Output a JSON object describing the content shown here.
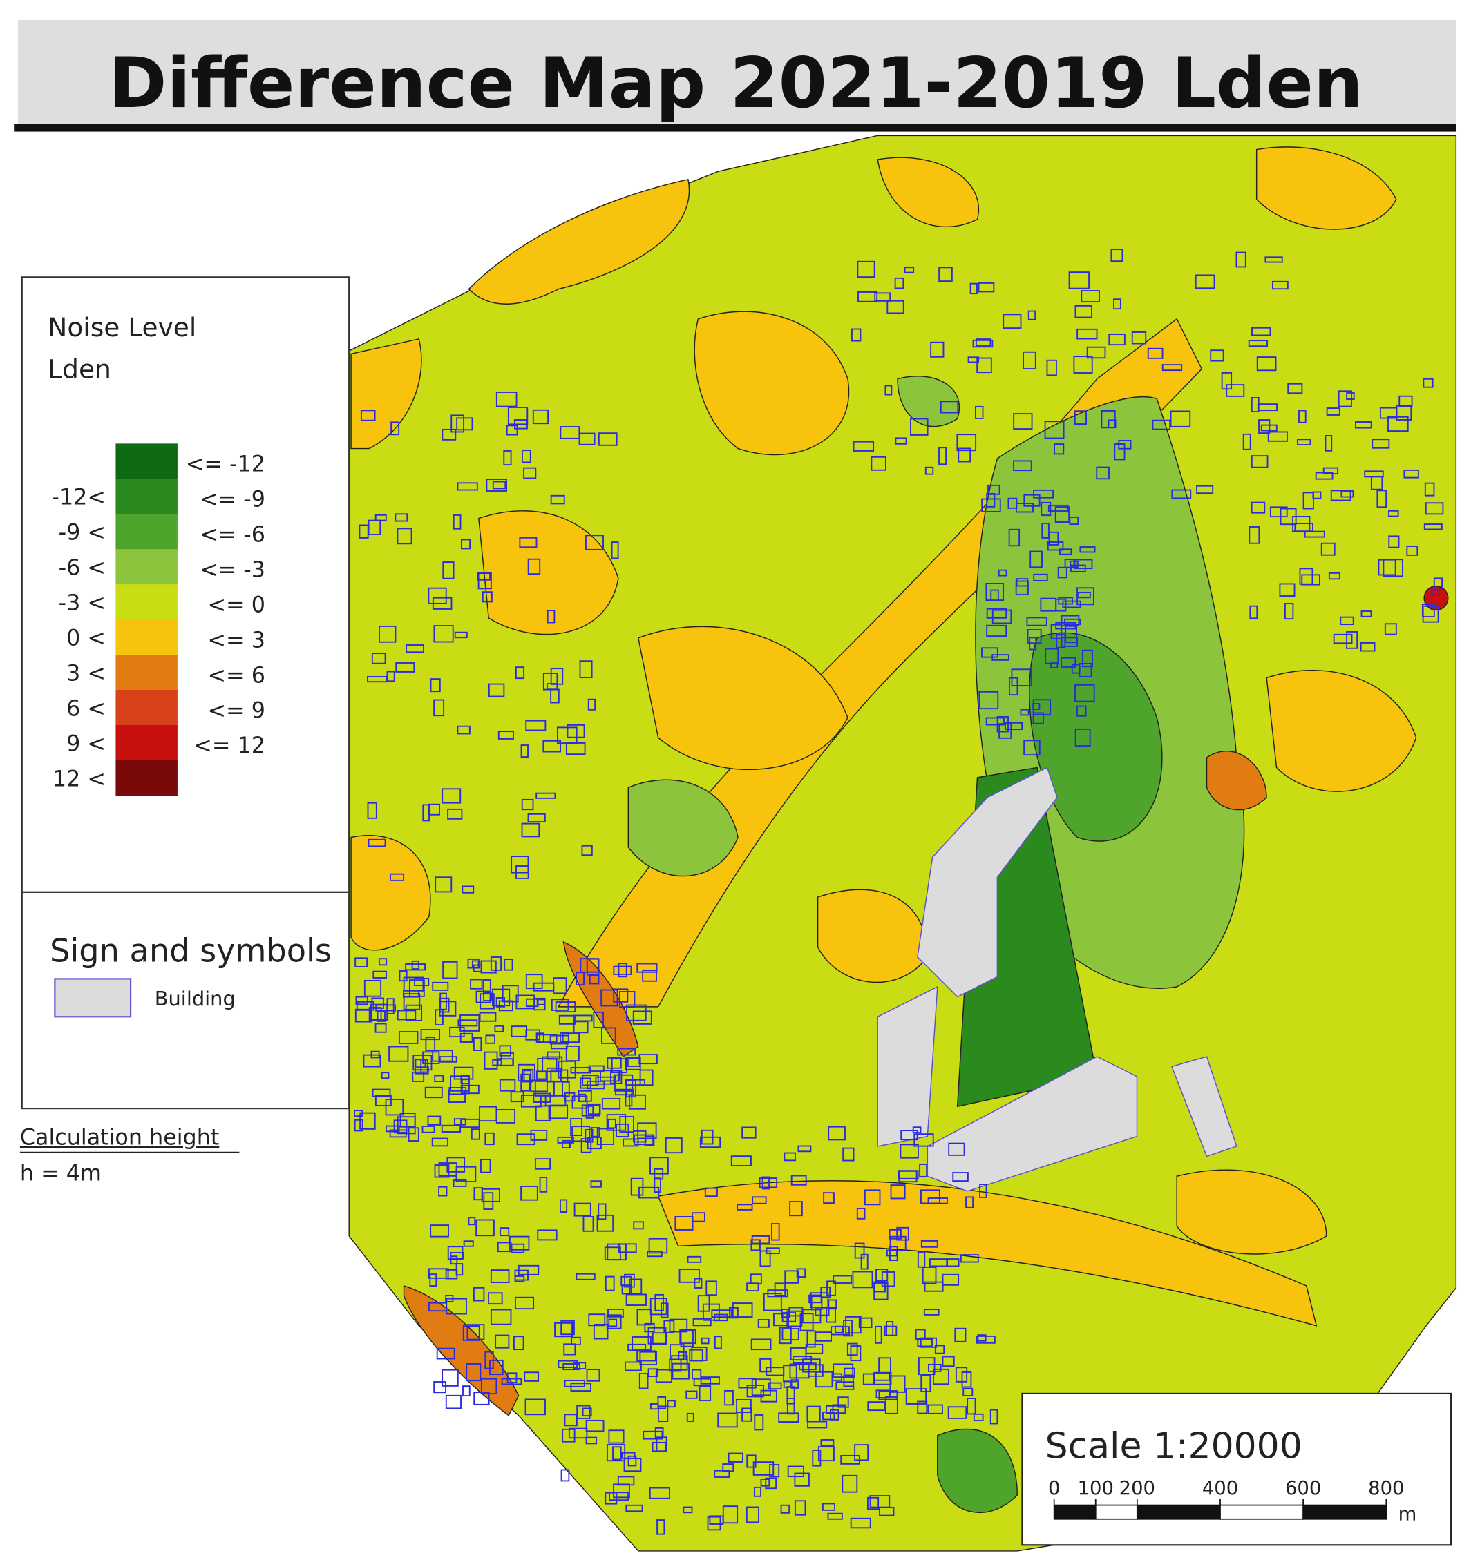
{
  "title": "Difference Map 2021-2019 Lden",
  "legend": {
    "title": [
      "Noise Level",
      "Lden"
    ],
    "classes": [
      {
        "color": "#0e6b14",
        "lower": null,
        "upper": "<= -12"
      },
      {
        "color": "#2a8a1e",
        "lower": "-12<",
        "upper": "<= -9"
      },
      {
        "color": "#4fa52c",
        "lower": "-9 <",
        "upper": "<= -6"
      },
      {
        "color": "#8cc43c",
        "lower": "-6 <",
        "upper": "<= -3"
      },
      {
        "color": "#c9dc14",
        "lower": "-3 <",
        "upper": "<= 0"
      },
      {
        "color": "#f7c30c",
        "lower": "0 <",
        "upper": "<= 3"
      },
      {
        "color": "#e07c12",
        "lower": "3 <",
        "upper": "<= 6"
      },
      {
        "color": "#d8421a",
        "lower": "6 <",
        "upper": "<= 9"
      },
      {
        "color": "#c8100e",
        "lower": "9 <",
        "upper": "<= 12"
      },
      {
        "color": "#7a0a0a",
        "lower": "12 <",
        "upper": null
      }
    ]
  },
  "symbols": {
    "title": "Sign and symbols",
    "items": [
      {
        "label": "Building",
        "fill": "#dcdcdc",
        "stroke": "#5b50d2"
      }
    ]
  },
  "calculation": {
    "label": "Calculation height",
    "value": "h = 4m"
  },
  "scale": {
    "label": "Scale 1:20000",
    "ticks": [
      0,
      100,
      200,
      400,
      600,
      800
    ],
    "unit": "m"
  }
}
